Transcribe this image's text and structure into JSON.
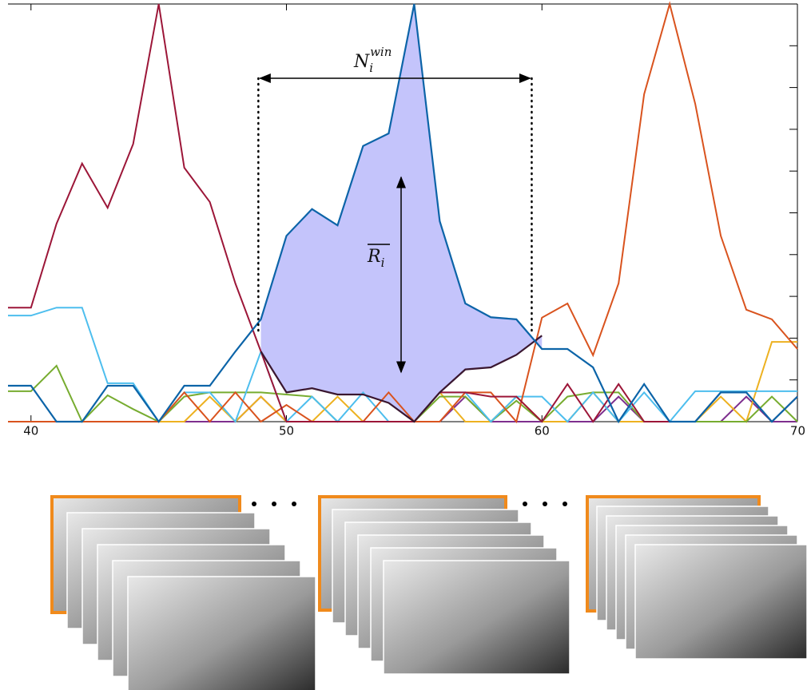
{
  "chart_data": {
    "type": "line",
    "x": [
      39.1,
      40,
      41,
      42,
      43,
      44,
      45,
      46,
      47,
      48,
      49,
      50,
      51,
      52,
      53,
      54,
      55,
      56,
      57,
      58,
      59,
      60,
      61,
      62,
      63,
      64,
      65,
      66,
      67,
      68,
      69,
      70
    ],
    "xlim": [
      39.1,
      70
    ],
    "xticks": [
      40,
      50,
      60,
      70
    ],
    "ylim": [
      0,
      10
    ],
    "yticks": [
      1,
      2,
      3,
      4,
      5,
      6,
      7,
      8,
      9
    ],
    "window": [
      48.9,
      59.6
    ],
    "window_label": {
      "base": "N",
      "sub": "i",
      "sup": "win"
    },
    "mean_label": {
      "base": "R",
      "sub": "i"
    },
    "fill_color": "#c4c4fb",
    "series": [
      {
        "color": "#9c1638",
        "values": [
          2.73,
          2.73,
          4.74,
          6.18,
          5.12,
          6.65,
          10,
          6.08,
          5.26,
          3.31,
          1.68,
          0,
          0,
          0,
          0,
          0,
          0,
          0.7,
          0.7,
          0.6,
          0.6,
          0,
          0.9,
          0,
          0.9,
          0,
          0,
          0,
          0.7,
          0.7,
          0,
          0.6
        ]
      },
      {
        "color": "#0c64a8",
        "values": [
          0.86,
          0.86,
          0,
          0,
          0.86,
          0.86,
          0,
          0.86,
          0.86,
          1.68,
          2.45,
          4.45,
          5.09,
          4.7,
          6.6,
          6.9,
          10,
          4.8,
          2.83,
          2.5,
          2.45,
          1.74,
          1.74,
          1.3,
          0,
          0.9,
          0,
          0,
          0.7,
          0.7,
          0,
          0.6
        ]
      },
      {
        "color": "#3a1730",
        "values": [
          null,
          null,
          null,
          null,
          null,
          null,
          null,
          null,
          null,
          null,
          1.68,
          0.7,
          0.8,
          0.65,
          0.65,
          0.45,
          0,
          0.7,
          1.25,
          1.3,
          1.6,
          2.06,
          null,
          null,
          null,
          null,
          null,
          null,
          null,
          null,
          null,
          null
        ]
      },
      {
        "color": "#d9531e",
        "values": [
          0,
          0,
          0,
          0,
          0,
          0,
          0,
          0.7,
          0,
          0.7,
          0,
          0.4,
          0,
          0,
          0,
          0.7,
          0,
          0,
          0.7,
          0.7,
          0,
          2.49,
          2.83,
          1.59,
          3.31,
          7.84,
          10,
          7.61,
          4.45,
          2.68,
          2.45,
          1.74
        ]
      },
      {
        "color": "#4dbeee",
        "values": [
          2.54,
          2.54,
          2.73,
          2.73,
          0.92,
          0.92,
          0,
          0.7,
          0.7,
          0,
          1.68,
          0,
          0.6,
          0,
          0.7,
          0,
          0,
          0.7,
          0.7,
          0,
          0.6,
          0.6,
          0,
          0.7,
          0,
          0.7,
          0,
          0.73,
          0.73,
          0.73,
          0.73,
          0.73
        ]
      },
      {
        "color": "#77ac30",
        "values": [
          0.73,
          0.73,
          1.34,
          0,
          0.63,
          0.3,
          0,
          0.6,
          0.7,
          0.7,
          0.7,
          0.65,
          0.6,
          0,
          0,
          0,
          0,
          0.6,
          0.6,
          0,
          0.5,
          0,
          0.6,
          0.7,
          0.7,
          0,
          0,
          0,
          0,
          0,
          0.6,
          0
        ]
      },
      {
        "color": "#edb120",
        "values": [
          0,
          0,
          0,
          0,
          0,
          0,
          0,
          0,
          0.6,
          0,
          0.6,
          0,
          0,
          0.6,
          0,
          0,
          0,
          0.7,
          0,
          0,
          0.6,
          0,
          0,
          0.7,
          0,
          0,
          0,
          0,
          0.6,
          0,
          1.91,
          1.91
        ]
      },
      {
        "color": "#7e2f8e",
        "values": [
          0,
          0,
          0,
          0,
          0,
          0,
          0,
          0,
          0,
          0,
          0.6,
          0,
          0,
          0,
          0,
          0,
          0,
          0,
          0.6,
          0,
          0,
          0,
          0,
          0,
          0.6,
          0,
          0,
          0,
          0,
          0.6,
          0,
          0
        ]
      }
    ]
  }
}
